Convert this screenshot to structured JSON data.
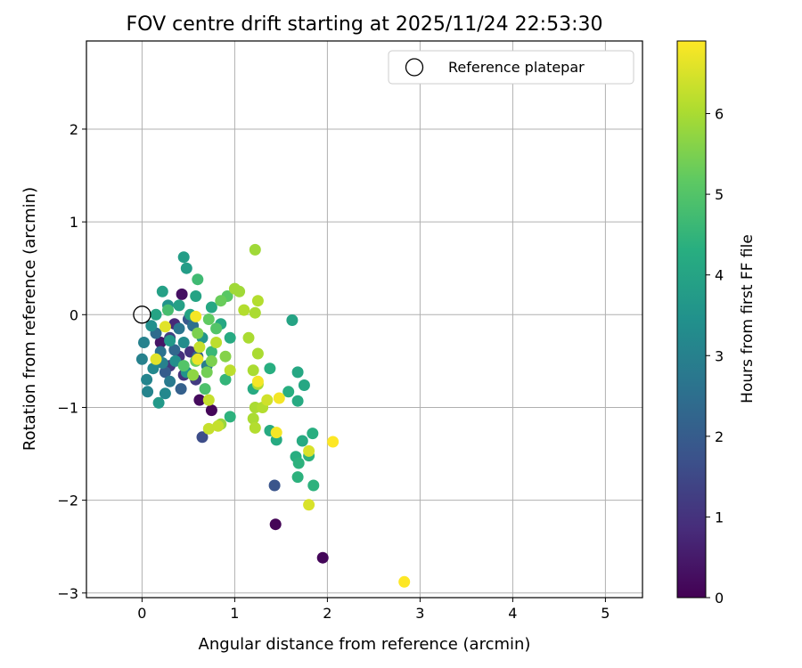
{
  "chart_data": {
    "type": "scatter",
    "title": "FOV centre drift starting at 2025/11/24 22:53:30",
    "xlabel": "Angular distance from reference (arcmin)",
    "ylabel": "Rotation from reference (arcmin)",
    "xlim": [
      -0.6,
      5.4
    ],
    "ylim": [
      -3.05,
      2.95
    ],
    "xticks": [
      0,
      1,
      2,
      3,
      4,
      5
    ],
    "yticks": [
      -3,
      -2,
      -1,
      0,
      1,
      2
    ],
    "xtick_labels": [
      "0",
      "1",
      "2",
      "3",
      "4",
      "5"
    ],
    "ytick_labels": [
      "−3",
      "−2",
      "−1",
      "0",
      "1",
      "2"
    ],
    "grid": true,
    "colormap": "viridis",
    "colorbar": {
      "label": "Hours from first FF file",
      "range": [
        0,
        6.9
      ],
      "ticks": [
        0,
        1,
        2,
        3,
        4,
        5,
        6
      ],
      "tick_labels": [
        "0",
        "1",
        "2",
        "3",
        "4",
        "5",
        "6"
      ]
    },
    "legend": {
      "position": "top-right",
      "entries": [
        "Reference platepar"
      ]
    },
    "reference": {
      "x": 0,
      "y": 0,
      "label": "Reference platepar"
    },
    "points": [
      [
        0.43,
        0.22,
        0.3
      ],
      [
        0.2,
        -0.3,
        0.4
      ],
      [
        0.62,
        -0.92,
        0.2
      ],
      [
        0.75,
        -1.03,
        0.1
      ],
      [
        1.44,
        -2.26,
        0.05
      ],
      [
        1.95,
        -2.62,
        0.1
      ],
      [
        0.35,
        -0.1,
        0.8
      ],
      [
        0.4,
        -0.45,
        0.9
      ],
      [
        0.52,
        -0.4,
        1.0
      ],
      [
        0.45,
        -0.65,
        1.0
      ],
      [
        0.3,
        -0.55,
        1.1
      ],
      [
        0.58,
        -0.7,
        1.2
      ],
      [
        0.3,
        -0.25,
        1.3
      ],
      [
        0.65,
        -1.32,
        1.6
      ],
      [
        1.43,
        -1.84,
        1.8
      ],
      [
        0.5,
        -0.05,
        1.9
      ],
      [
        0.25,
        -0.62,
        2.0
      ],
      [
        0.42,
        -0.8,
        2.1
      ],
      [
        0.6,
        -0.45,
        2.2
      ],
      [
        0.35,
        -0.38,
        2.3
      ],
      [
        0.15,
        -0.2,
        2.4
      ],
      [
        0.55,
        -0.12,
        2.5
      ],
      [
        0.2,
        -0.4,
        2.6
      ],
      [
        0.4,
        -0.15,
        2.7
      ],
      [
        0.3,
        -0.72,
        2.8
      ],
      [
        0.7,
        -0.55,
        2.9
      ],
      [
        0.22,
        -0.52,
        3.0
      ],
      [
        0.02,
        -0.3,
        3.0
      ],
      [
        0.0,
        -0.48,
        3.0
      ],
      [
        0.05,
        -0.7,
        3.1
      ],
      [
        0.06,
        -0.83,
        3.1
      ],
      [
        0.12,
        -0.58,
        3.2
      ],
      [
        0.25,
        -0.85,
        3.2
      ],
      [
        0.45,
        -0.3,
        3.3
      ],
      [
        0.1,
        -0.12,
        3.4
      ],
      [
        0.36,
        -0.5,
        3.4
      ],
      [
        0.48,
        -0.62,
        3.5
      ],
      [
        0.28,
        0.1,
        3.5
      ],
      [
        0.65,
        -0.25,
        3.6
      ],
      [
        0.18,
        -0.95,
        3.7
      ],
      [
        0.3,
        -0.28,
        3.7
      ],
      [
        0.45,
        0.62,
        3.8
      ],
      [
        0.48,
        0.5,
        3.8
      ],
      [
        0.22,
        0.25,
        3.9
      ],
      [
        0.4,
        0.1,
        3.9
      ],
      [
        0.58,
        0.2,
        4.0
      ],
      [
        0.15,
        0.0,
        4.0
      ],
      [
        0.52,
        0.0,
        4.0
      ],
      [
        0.75,
        0.08,
        4.1
      ],
      [
        0.85,
        -0.1,
        4.1
      ],
      [
        0.95,
        -0.25,
        4.2
      ],
      [
        1.2,
        -0.8,
        4.2
      ],
      [
        1.38,
        -0.58,
        4.3
      ],
      [
        1.58,
        -0.83,
        4.3
      ],
      [
        1.62,
        -0.06,
        4.0
      ],
      [
        1.68,
        -0.62,
        4.1
      ],
      [
        1.75,
        -0.76,
        4.1
      ],
      [
        1.68,
        -0.93,
        4.2
      ],
      [
        1.38,
        -1.25,
        4.2
      ],
      [
        1.45,
        -1.35,
        4.2
      ],
      [
        1.73,
        -1.36,
        4.2
      ],
      [
        1.84,
        -1.28,
        4.3
      ],
      [
        1.66,
        -1.53,
        4.3
      ],
      [
        1.69,
        -1.6,
        4.4
      ],
      [
        1.8,
        -1.52,
        4.4
      ],
      [
        1.68,
        -1.75,
        4.4
      ],
      [
        1.85,
        -1.84,
        4.4
      ],
      [
        0.95,
        -1.1,
        4.4
      ],
      [
        0.9,
        -0.7,
        4.5
      ],
      [
        0.75,
        -0.4,
        4.6
      ],
      [
        0.6,
        0.38,
        4.7
      ],
      [
        0.28,
        0.05,
        4.8
      ],
      [
        0.68,
        -0.8,
        4.9
      ],
      [
        0.8,
        -0.15,
        5.0
      ],
      [
        0.45,
        -0.55,
        5.0
      ],
      [
        0.92,
        0.2,
        5.1
      ],
      [
        0.72,
        -0.05,
        5.2
      ],
      [
        0.58,
        -0.5,
        5.3
      ],
      [
        0.85,
        0.15,
        5.3
      ],
      [
        0.7,
        -0.62,
        5.4
      ],
      [
        0.6,
        -0.2,
        5.5
      ],
      [
        0.75,
        -0.5,
        5.5
      ],
      [
        0.9,
        -0.45,
        5.6
      ],
      [
        0.55,
        -0.65,
        5.7
      ],
      [
        0.85,
        -1.18,
        5.8
      ],
      [
        1.22,
        0.7,
        5.9
      ],
      [
        1.05,
        0.25,
        5.9
      ],
      [
        1.0,
        0.28,
        5.9
      ],
      [
        1.22,
        0.02,
        6.0
      ],
      [
        1.15,
        -0.25,
        6.0
      ],
      [
        1.25,
        -0.42,
        6.0
      ],
      [
        1.2,
        -0.6,
        6.0
      ],
      [
        1.25,
        -0.75,
        6.0
      ],
      [
        1.22,
        -1.0,
        6.0
      ],
      [
        1.2,
        -1.12,
        6.0
      ],
      [
        1.22,
        -1.22,
        6.1
      ],
      [
        1.3,
        -1.0,
        6.1
      ],
      [
        1.25,
        0.15,
        6.1
      ],
      [
        1.1,
        0.05,
        6.1
      ],
      [
        0.95,
        -0.6,
        6.2
      ],
      [
        0.8,
        -0.3,
        6.2
      ],
      [
        0.62,
        -0.35,
        6.3
      ],
      [
        0.72,
        -0.92,
        6.3
      ],
      [
        0.72,
        -1.23,
        6.3
      ],
      [
        0.82,
        -1.2,
        6.3
      ],
      [
        1.35,
        -0.92,
        6.4
      ],
      [
        1.8,
        -1.47,
        6.5
      ],
      [
        1.8,
        -2.05,
        6.5
      ],
      [
        0.25,
        -0.13,
        6.6
      ],
      [
        0.15,
        -0.48,
        6.6
      ],
      [
        0.6,
        -0.48,
        6.7
      ],
      [
        1.45,
        -1.27,
        6.8
      ],
      [
        1.48,
        -0.9,
        6.8
      ],
      [
        1.25,
        -0.72,
        6.8
      ],
      [
        0.58,
        -0.02,
        6.8
      ],
      [
        2.06,
        -1.37,
        6.9
      ],
      [
        2.83,
        -2.88,
        6.9
      ]
    ]
  }
}
